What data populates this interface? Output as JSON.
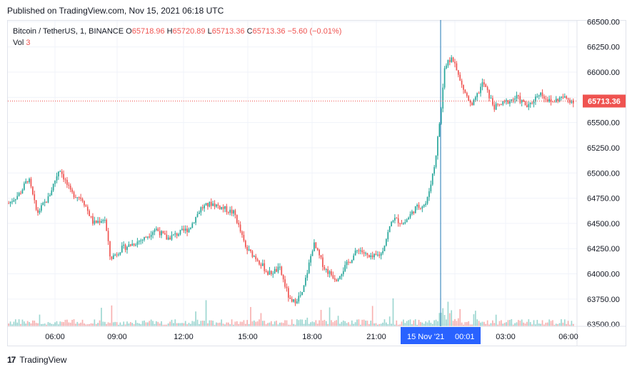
{
  "header": {
    "published": "Published on TradingView.com, Nov 15, 2021 06:18 UTC"
  },
  "legend": {
    "symbol": "Bitcoin / TetherUS, 1, BINANCE",
    "o_label": "O",
    "o_value": "65718.96",
    "h_label": "H",
    "h_value": "65720.89",
    "l_label": "L",
    "l_value": "65713.36",
    "c_label": "C",
    "c_value": "65713.36",
    "change": "−5.60 (−0.01%)",
    "vol_label": "Vol",
    "vol_value": "3"
  },
  "footer": {
    "logo": "17",
    "brand": "TradingView"
  },
  "colors": {
    "up": "#26a69a",
    "down": "#ef5350",
    "grid": "#f0f3fa",
    "axis_text": "#131722",
    "highlight": "#2962ff",
    "price_tag": "#ef5350",
    "cursor_line": "#1f77b4"
  },
  "chart_data": {
    "type": "candlestick",
    "symbol": "Bitcoin / TetherUS",
    "interval": "1",
    "exchange": "BINANCE",
    "y_axis": {
      "ticks": [
        "66500.00",
        "66250.00",
        "66000.00",
        "65750.00",
        "65500.00",
        "65250.00",
        "65000.00",
        "64750.00",
        "64500.00",
        "64250.00",
        "64000.00",
        "63750.00",
        "63500.00"
      ],
      "range": [
        63480,
        66510
      ]
    },
    "x_axis": {
      "ticks": [
        "06:00",
        "09:00",
        "12:00",
        "15:00",
        "18:00",
        "21:00",
        "00:01",
        "03:00",
        "06:00"
      ]
    },
    "crosshair": {
      "date_label": "15 Nov '21",
      "time_label": "00:01"
    },
    "last_price": "65713.36",
    "price_path": [
      [
        0,
        64700
      ],
      [
        0.02,
        64800
      ],
      [
        0.035,
        64950
      ],
      [
        0.05,
        64600
      ],
      [
        0.07,
        64750
      ],
      [
        0.09,
        65050
      ],
      [
        0.11,
        64800
      ],
      [
        0.13,
        64750
      ],
      [
        0.15,
        64500
      ],
      [
        0.17,
        64550
      ],
      [
        0.18,
        64150
      ],
      [
        0.2,
        64250
      ],
      [
        0.22,
        64300
      ],
      [
        0.24,
        64350
      ],
      [
        0.26,
        64450
      ],
      [
        0.28,
        64350
      ],
      [
        0.3,
        64400
      ],
      [
        0.32,
        64450
      ],
      [
        0.34,
        64650
      ],
      [
        0.36,
        64700
      ],
      [
        0.38,
        64650
      ],
      [
        0.4,
        64600
      ],
      [
        0.42,
        64250
      ],
      [
        0.44,
        64150
      ],
      [
        0.46,
        64000
      ],
      [
        0.48,
        64050
      ],
      [
        0.5,
        63700
      ],
      [
        0.52,
        63800
      ],
      [
        0.54,
        64300
      ],
      [
        0.56,
        64050
      ],
      [
        0.58,
        63950
      ],
      [
        0.6,
        64100
      ],
      [
        0.62,
        64250
      ],
      [
        0.64,
        64150
      ],
      [
        0.66,
        64200
      ],
      [
        0.68,
        64550
      ],
      [
        0.7,
        64500
      ],
      [
        0.72,
        64650
      ],
      [
        0.74,
        64700
      ],
      [
        0.755,
        65100
      ],
      [
        0.765,
        65600
      ],
      [
        0.772,
        66050
      ],
      [
        0.785,
        66150
      ],
      [
        0.8,
        65900
      ],
      [
        0.82,
        65650
      ],
      [
        0.84,
        65900
      ],
      [
        0.86,
        65650
      ],
      [
        0.88,
        65700
      ],
      [
        0.9,
        65750
      ],
      [
        0.92,
        65650
      ],
      [
        0.94,
        65800
      ],
      [
        0.96,
        65700
      ],
      [
        0.98,
        65750
      ],
      [
        1.0,
        65713
      ]
    ]
  }
}
